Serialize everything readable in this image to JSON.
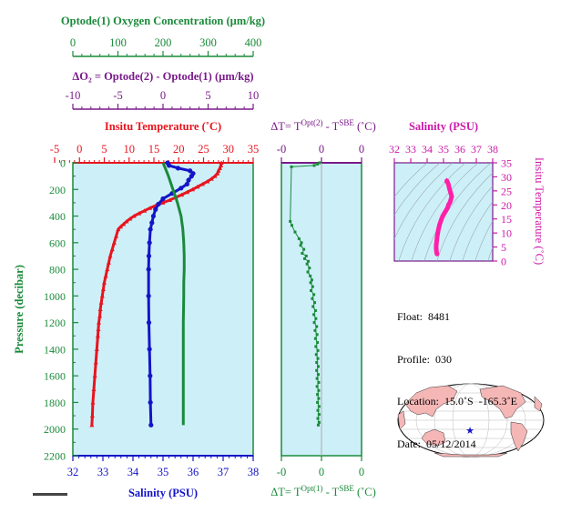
{
  "colors": {
    "oxygen": "#1a8a3a",
    "delta_o2": "#7a1a8a",
    "temperature": "#e8141e",
    "salinity": "#1414c8",
    "delta_t": "#1a8a3a",
    "ts_curve": "#ff1fa8",
    "panel_bg": "#cdeff8"
  },
  "axes": {
    "oxygen_title": "Optode(1) Oxygen Concentration (µm/kg)",
    "oxygen_ticks": [
      "0",
      "100",
      "200",
      "300",
      "400"
    ],
    "delta_o2_title": "ΔO₂ = Optode(2) - Optode(1)   (µm/kg)",
    "delta_o2_ticks": [
      "-10",
      "-5",
      "0",
      "5",
      "10"
    ],
    "temp_title": "Insitu Temperature (˚C)",
    "temp_ticks": [
      "-5",
      "0",
      "5",
      "10",
      "15",
      "20",
      "25",
      "30",
      "35"
    ],
    "sal_title": "Salinity (PSU)",
    "sal_ticks": [
      "32",
      "33",
      "34",
      "35",
      "36",
      "37",
      "38"
    ],
    "pressure_title": "Pressure (decibar)",
    "pressure_ticks": [
      "0",
      "200",
      "400",
      "600",
      "800",
      "1000",
      "1200",
      "1400",
      "1600",
      "1800",
      "2000",
      "2200"
    ],
    "dt_top_title": "ΔT= T^Opt(2) - T^SBE (˚C)",
    "dt_top_ticks": [
      "-0",
      "0",
      "0"
    ],
    "dt_bottom_title": "ΔT= T^Opt(1) - T^SBE (˚C)",
    "dt_bottom_ticks": [
      "-0",
      "0",
      "0"
    ],
    "ts_sal_title": "Salinity (PSU)",
    "ts_sal_ticks": [
      "32",
      "33",
      "34",
      "35",
      "36",
      "37",
      "38"
    ],
    "ts_temp_title": "Insitu Temperature (˚C)",
    "ts_temp_ticks": [
      "0",
      "5",
      "10",
      "15",
      "20",
      "25",
      "30",
      "35"
    ]
  },
  "info": {
    "float": "Float:  8481",
    "profile": "Profile:  030",
    "location": "Location:  15.0˚S  -165.3˚E",
    "date": "Date:  05/12/2014"
  },
  "chart_data": [
    {
      "type": "line",
      "name": "main-profile",
      "ylabel": "Pressure (decibar)",
      "ylim": [
        2200,
        0
      ],
      "series": [
        {
          "name": "Insitu Temperature (˚C)",
          "xlim": [
            -5,
            35
          ],
          "points": [
            [
              28.6,
              0
            ],
            [
              28.5,
              20
            ],
            [
              28.3,
              40
            ],
            [
              28.0,
              60
            ],
            [
              27.8,
              80
            ],
            [
              27.3,
              100
            ],
            [
              26.6,
              120
            ],
            [
              25.8,
              140
            ],
            [
              24.8,
              160
            ],
            [
              23.8,
              180
            ],
            [
              22.8,
              200
            ],
            [
              21.7,
              220
            ],
            [
              20.6,
              240
            ],
            [
              19.4,
              260
            ],
            [
              18.2,
              280
            ],
            [
              16.8,
              300
            ],
            [
              15.4,
              320
            ],
            [
              14.2,
              340
            ],
            [
              13.1,
              360
            ],
            [
              12.0,
              380
            ],
            [
              11.0,
              400
            ],
            [
              10.2,
              420
            ],
            [
              9.5,
              440
            ],
            [
              8.9,
              460
            ],
            [
              8.3,
              480
            ],
            [
              7.8,
              500
            ],
            [
              7.4,
              550
            ],
            [
              7.0,
              600
            ],
            [
              6.6,
              650
            ],
            [
              6.2,
              700
            ],
            [
              5.9,
              750
            ],
            [
              5.6,
              800
            ],
            [
              5.3,
              850
            ],
            [
              5.0,
              900
            ],
            [
              4.8,
              950
            ],
            [
              4.6,
              1000
            ],
            [
              4.4,
              1050
            ],
            [
              4.2,
              1100
            ],
            [
              4.1,
              1150
            ],
            [
              3.9,
              1200
            ],
            [
              3.8,
              1250
            ],
            [
              3.7,
              1300
            ],
            [
              3.5,
              1400
            ],
            [
              3.3,
              1500
            ],
            [
              3.1,
              1600
            ],
            [
              2.9,
              1700
            ],
            [
              2.7,
              1800
            ],
            [
              2.6,
              1900
            ],
            [
              2.5,
              1970
            ]
          ]
        },
        {
          "name": "Salinity (PSU)",
          "xlim": [
            32,
            38
          ],
          "points": [
            [
              35.15,
              0
            ],
            [
              35.2,
              20
            ],
            [
              35.5,
              40
            ],
            [
              35.9,
              60
            ],
            [
              36.0,
              80
            ],
            [
              35.95,
              100
            ],
            [
              35.85,
              130
            ],
            [
              35.8,
              160
            ],
            [
              35.6,
              190
            ],
            [
              35.3,
              230
            ],
            [
              35.0,
              270
            ],
            [
              34.85,
              310
            ],
            [
              34.75,
              350
            ],
            [
              34.68,
              400
            ],
            [
              34.63,
              450
            ],
            [
              34.58,
              500
            ],
            [
              34.55,
              600
            ],
            [
              34.53,
              700
            ],
            [
              34.52,
              800
            ],
            [
              34.52,
              1000
            ],
            [
              34.53,
              1200
            ],
            [
              34.55,
              1400
            ],
            [
              34.57,
              1600
            ],
            [
              34.58,
              1800
            ],
            [
              34.6,
              1970
            ]
          ]
        },
        {
          "name": "Optode(1) Oxygen Concentration (µm/kg)",
          "xlim": [
            0,
            400
          ],
          "points": [
            [
              200,
              0
            ],
            [
              205,
              40
            ],
            [
              212,
              100
            ],
            [
              222,
              200
            ],
            [
              232,
              300
            ],
            [
              240,
              400
            ],
            [
              244,
              500
            ],
            [
              246,
              600
            ],
            [
              247,
              700
            ],
            [
              247,
              800
            ],
            [
              246,
              900
            ],
            [
              246,
              1000
            ],
            [
              245,
              1200
            ],
            [
              245,
              1400
            ],
            [
              245,
              1600
            ],
            [
              245,
              1800
            ],
            [
              245,
              1970
            ]
          ]
        }
      ]
    },
    {
      "type": "scatter",
      "name": "delta-t",
      "xlim": [
        -1,
        1
      ],
      "ylim": [
        2200,
        0
      ],
      "series": [
        {
          "name": "ΔT= T^Opt(1) - T^SBE (˚C)",
          "points": [
            [
              -0.05,
              0
            ],
            [
              -0.1,
              10
            ],
            [
              -0.18,
              20
            ],
            [
              -0.75,
              30
            ],
            [
              -0.78,
              440
            ],
            [
              -0.74,
              470
            ],
            [
              -0.66,
              520
            ],
            [
              -0.56,
              570
            ],
            [
              -0.5,
              600
            ],
            [
              -0.52,
              620
            ],
            [
              -0.44,
              650
            ],
            [
              -0.48,
              680
            ],
            [
              -0.38,
              700
            ],
            [
              -0.42,
              720
            ],
            [
              -0.33,
              740
            ],
            [
              -0.36,
              760
            ],
            [
              -0.3,
              790
            ],
            [
              -0.34,
              820
            ],
            [
              -0.28,
              850
            ],
            [
              -0.24,
              880
            ],
            [
              -0.27,
              900
            ],
            [
              -0.22,
              930
            ],
            [
              -0.26,
              960
            ],
            [
              -0.19,
              990
            ],
            [
              -0.23,
              1020
            ],
            [
              -0.17,
              1050
            ],
            [
              -0.21,
              1080
            ],
            [
              -0.15,
              1110
            ],
            [
              -0.19,
              1140
            ],
            [
              -0.14,
              1170
            ],
            [
              -0.18,
              1200
            ],
            [
              -0.12,
              1230
            ],
            [
              -0.16,
              1260
            ],
            [
              -0.11,
              1290
            ],
            [
              -0.15,
              1320
            ],
            [
              -0.1,
              1350
            ],
            [
              -0.14,
              1380
            ],
            [
              -0.09,
              1410
            ],
            [
              -0.13,
              1440
            ],
            [
              -0.09,
              1470
            ],
            [
              -0.12,
              1500
            ],
            [
              -0.08,
              1530
            ],
            [
              -0.12,
              1560
            ],
            [
              -0.08,
              1590
            ],
            [
              -0.11,
              1620
            ],
            [
              -0.07,
              1650
            ],
            [
              -0.11,
              1680
            ],
            [
              -0.07,
              1710
            ],
            [
              -0.1,
              1740
            ],
            [
              -0.07,
              1770
            ],
            [
              -0.1,
              1800
            ],
            [
              -0.06,
              1830
            ],
            [
              -0.09,
              1860
            ],
            [
              -0.06,
              1890
            ],
            [
              -0.09,
              1920
            ],
            [
              -0.06,
              1950
            ],
            [
              -0.08,
              1970
            ]
          ]
        }
      ]
    },
    {
      "type": "scatter",
      "name": "ts-diagram",
      "xlabel": "Salinity (PSU)",
      "ylabel": "Insitu Temperature (˚C)",
      "xlim": [
        32,
        38
      ],
      "ylim": [
        0,
        35
      ],
      "points": [
        [
          35.2,
          28.6
        ],
        [
          35.25,
          28.0
        ],
        [
          35.3,
          27.3
        ],
        [
          35.35,
          26.0
        ],
        [
          35.4,
          25.0
        ],
        [
          35.45,
          24.0
        ],
        [
          35.5,
          23.0
        ],
        [
          35.45,
          22.0
        ],
        [
          35.4,
          21.0
        ],
        [
          35.3,
          20.0
        ],
        [
          35.25,
          19.0
        ],
        [
          35.15,
          18.0
        ],
        [
          35.05,
          17.0
        ],
        [
          34.95,
          16.0
        ],
        [
          34.88,
          15.0
        ],
        [
          34.82,
          14.0
        ],
        [
          34.76,
          13.0
        ],
        [
          34.72,
          12.0
        ],
        [
          34.68,
          11.0
        ],
        [
          34.65,
          10.0
        ],
        [
          34.62,
          9.0
        ],
        [
          34.6,
          8.0
        ],
        [
          34.58,
          7.0
        ],
        [
          34.56,
          6.0
        ],
        [
          34.55,
          5.0
        ],
        [
          34.56,
          4.0
        ],
        [
          34.58,
          3.0
        ],
        [
          34.6,
          2.5
        ]
      ]
    }
  ]
}
